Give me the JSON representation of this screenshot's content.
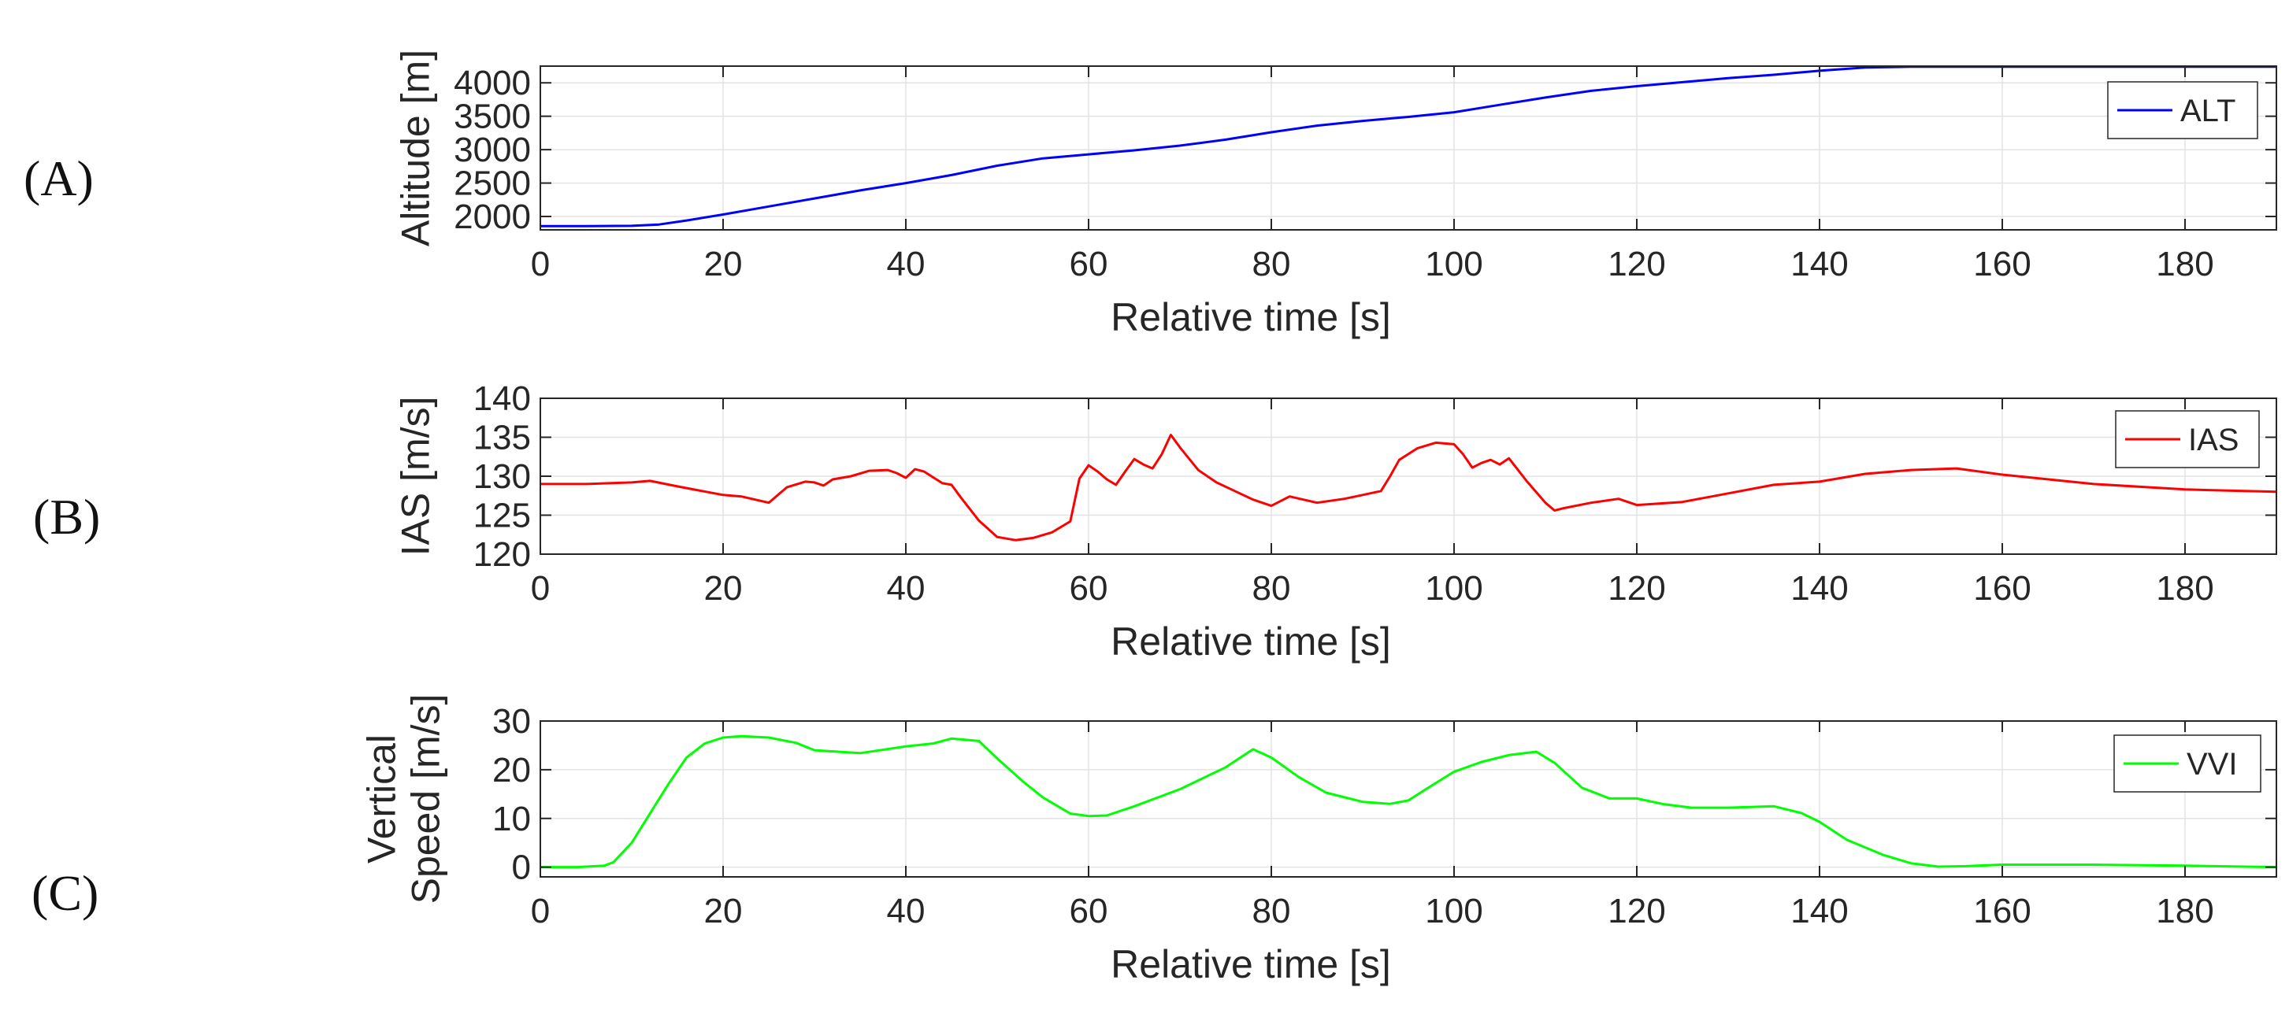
{
  "panel_labels": [
    "(A)",
    "(B)",
    "(C)"
  ],
  "colors": {
    "ALT": "#0000ff",
    "IAS": "#ff0000",
    "VVI": "#00ff00"
  },
  "chart_data": [
    {
      "type": "line",
      "panel": "(A)",
      "xlabel": "Relative time [s]",
      "ylabel": [
        "Altitude [m]"
      ],
      "xlim": [
        0,
        190
      ],
      "ylim": [
        1800,
        4250
      ],
      "xticks": [
        0,
        20,
        40,
        60,
        80,
        100,
        120,
        140,
        160,
        180
      ],
      "yticks": [
        2000,
        2500,
        3000,
        3500,
        4000
      ],
      "grid": true,
      "legend": "right",
      "series": [
        {
          "name": "ALT",
          "x": [
            0,
            5,
            10,
            13,
            16,
            20,
            25,
            30,
            35,
            40,
            45,
            50,
            55,
            60,
            65,
            70,
            75,
            80,
            85,
            90,
            95,
            100,
            105,
            110,
            115,
            120,
            125,
            130,
            135,
            140,
            145,
            150,
            160,
            170,
            180,
            190
          ],
          "y": [
            1855,
            1855,
            1860,
            1880,
            1940,
            2030,
            2150,
            2270,
            2390,
            2500,
            2620,
            2760,
            2870,
            2930,
            2990,
            3060,
            3150,
            3260,
            3360,
            3430,
            3490,
            3560,
            3670,
            3780,
            3880,
            3950,
            4010,
            4070,
            4120,
            4180,
            4230,
            4240,
            4240,
            4240,
            4240,
            4240
          ]
        }
      ]
    },
    {
      "type": "line",
      "panel": "(B)",
      "xlabel": "Relative time [s]",
      "ylabel": [
        "IAS [m/s]"
      ],
      "xlim": [
        0,
        190
      ],
      "ylim": [
        120,
        140
      ],
      "xticks": [
        0,
        20,
        40,
        60,
        80,
        100,
        120,
        140,
        160,
        180
      ],
      "yticks": [
        120,
        125,
        130,
        135,
        140
      ],
      "grid": true,
      "legend": "right",
      "series": [
        {
          "name": "IAS",
          "x": [
            0,
            5,
            10,
            12,
            15,
            20,
            22,
            25,
            27,
            29,
            30,
            31,
            32,
            34,
            36,
            38,
            39,
            40,
            41,
            42,
            44,
            45,
            46,
            48,
            50,
            52,
            54,
            56,
            58,
            59,
            60,
            61,
            62,
            63,
            64,
            65,
            66,
            67,
            68,
            69,
            70,
            72,
            74,
            76,
            78,
            80,
            82,
            85,
            88,
            90,
            92,
            93,
            94,
            96,
            98,
            100,
            101,
            102,
            103,
            104,
            105,
            106,
            108,
            110,
            111,
            112,
            115,
            118,
            120,
            125,
            130,
            135,
            140,
            145,
            150,
            155,
            160,
            170,
            180,
            190
          ],
          "y": [
            129,
            129,
            129.2,
            129.4,
            128.7,
            127.6,
            127.4,
            126.6,
            128.6,
            129.3,
            129.2,
            128.8,
            129.6,
            130,
            130.7,
            130.8,
            130.4,
            129.8,
            130.9,
            130.6,
            129.1,
            128.9,
            127.3,
            124.3,
            122.2,
            121.8,
            122.1,
            122.8,
            124.2,
            129.7,
            131.4,
            130.6,
            129.6,
            128.9,
            130.6,
            132.2,
            131.5,
            131,
            132.8,
            135.3,
            133.7,
            130.8,
            129.2,
            128.1,
            127,
            126.2,
            127.4,
            126.6,
            127.1,
            127.6,
            128.1,
            130,
            132.1,
            133.6,
            134.3,
            134.1,
            132.8,
            131.1,
            131.7,
            132.1,
            131.5,
            132.3,
            129.3,
            126.6,
            125.6,
            125.9,
            126.6,
            127.1,
            126.3,
            126.7,
            127.8,
            128.9,
            129.3,
            130.3,
            130.8,
            131,
            130.2,
            129,
            128.3,
            128
          ]
        }
      ]
    },
    {
      "type": "line",
      "panel": "(C)",
      "xlabel": "Relative time [s]",
      "ylabel": [
        "Vertical",
        "Speed [m/s]"
      ],
      "xlim": [
        0,
        190
      ],
      "ylim": [
        -2,
        30
      ],
      "xticks": [
        0,
        20,
        40,
        60,
        80,
        100,
        120,
        140,
        160,
        180
      ],
      "yticks": [
        0,
        10,
        20,
        30
      ],
      "grid": true,
      "legend": "right",
      "series": [
        {
          "name": "VVI",
          "x": [
            0,
            4,
            7,
            8,
            10,
            12,
            14,
            16,
            18,
            20,
            22,
            25,
            28,
            30,
            35,
            40,
            43,
            45,
            48,
            50,
            53,
            55,
            58,
            60,
            62,
            65,
            70,
            75,
            78,
            80,
            83,
            86,
            90,
            93,
            95,
            97,
            100,
            103,
            106,
            109,
            111,
            114,
            117,
            120,
            123,
            126,
            130,
            135,
            138,
            140,
            143,
            147,
            150,
            153,
            156,
            160,
            170,
            180,
            190
          ],
          "y": [
            0,
            0,
            0.3,
            1,
            5,
            11,
            17,
            22.5,
            25.4,
            26.6,
            26.9,
            26.6,
            25.5,
            24,
            23.4,
            24.8,
            25.4,
            26.4,
            25.9,
            22.3,
            17.3,
            14.3,
            11,
            10.5,
            10.6,
            12.5,
            16,
            20.5,
            24.2,
            22.5,
            18.5,
            15.3,
            13.4,
            13,
            13.7,
            16.1,
            19.6,
            21.6,
            23,
            23.7,
            21.4,
            16.3,
            14.1,
            14.1,
            12.9,
            12.2,
            12.2,
            12.5,
            11.1,
            9.3,
            5.6,
            2.5,
            0.8,
            0.1,
            0.2,
            0.5,
            0.5,
            0.3,
            0
          ]
        }
      ]
    }
  ]
}
